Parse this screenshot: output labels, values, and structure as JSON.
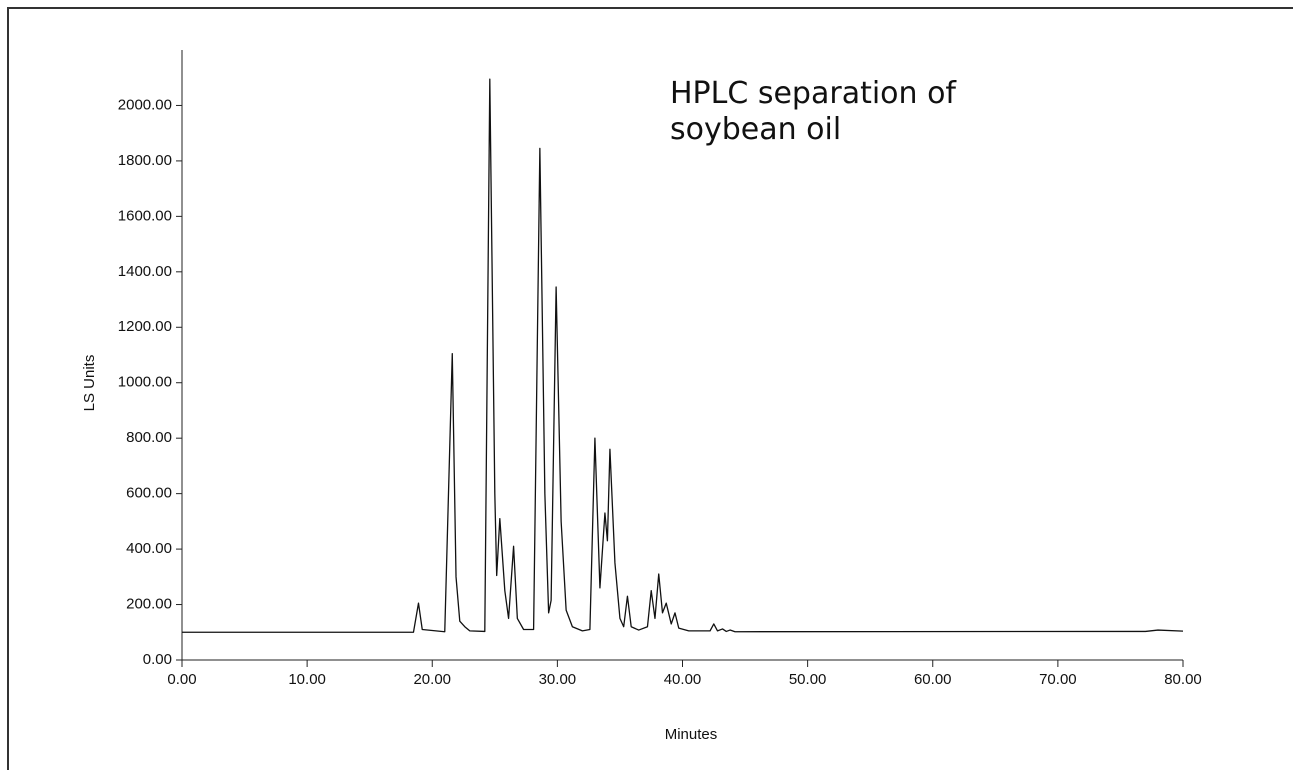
{
  "chart_data": {
    "type": "line",
    "title": "HPLC separation of soybean oil",
    "x_label": "Minutes",
    "y_label": "LS Units",
    "xlim": [
      0,
      80
    ],
    "ylim": [
      0,
      2200
    ],
    "xticks": [
      {
        "value": 0,
        "label": "0.00"
      },
      {
        "value": 10,
        "label": "10.00"
      },
      {
        "value": 20,
        "label": "20.00"
      },
      {
        "value": 30,
        "label": "30.00"
      },
      {
        "value": 40,
        "label": "40.00"
      },
      {
        "value": 50,
        "label": "50.00"
      },
      {
        "value": 60,
        "label": "60.00"
      },
      {
        "value": 70,
        "label": "70.00"
      },
      {
        "value": 80,
        "label": "80.00"
      }
    ],
    "yticks": [
      {
        "value": 0,
        "label": "0.00"
      },
      {
        "value": 200,
        "label": "200.00"
      },
      {
        "value": 400,
        "label": "400.00"
      },
      {
        "value": 600,
        "label": "600.00"
      },
      {
        "value": 800,
        "label": "800.00"
      },
      {
        "value": 1000,
        "label": "1000.00"
      },
      {
        "value": 1200,
        "label": "1200.00"
      },
      {
        "value": 1400,
        "label": "1400.00"
      },
      {
        "value": 1600,
        "label": "1600.00"
      },
      {
        "value": 1800,
        "label": "1800.00"
      },
      {
        "value": 2000,
        "label": "2000.00"
      }
    ],
    "color": "#111111",
    "x": [
      0,
      16,
      18.5,
      18.9,
      19.2,
      21.0,
      21.6,
      21.9,
      22.2,
      22.6,
      23.0,
      24.2,
      24.6,
      25.0,
      25.15,
      25.4,
      25.8,
      26.1,
      26.5,
      26.8,
      27.3,
      28.1,
      28.6,
      29.0,
      29.3,
      29.5,
      29.9,
      30.3,
      30.7,
      31.2,
      32.0,
      32.6,
      33.0,
      33.4,
      33.8,
      34.0,
      34.2,
      34.6,
      35.0,
      35.3,
      35.6,
      35.9,
      36.5,
      37.2,
      37.5,
      37.8,
      38.1,
      38.4,
      38.7,
      39.1,
      39.4,
      39.7,
      40.5,
      42.2,
      42.5,
      42.8,
      43.2,
      43.5,
      43.8,
      44.2,
      77,
      78,
      80
    ],
    "values": [
      100,
      100,
      100,
      205,
      110,
      102,
      1105,
      300,
      140,
      120,
      105,
      103,
      2095,
      600,
      305,
      510,
      250,
      150,
      410,
      150,
      110,
      110,
      1845,
      600,
      170,
      215,
      1345,
      500,
      180,
      120,
      105,
      110,
      800,
      260,
      530,
      430,
      760,
      350,
      150,
      120,
      230,
      120,
      108,
      120,
      250,
      150,
      310,
      170,
      205,
      130,
      170,
      115,
      105,
      105,
      130,
      105,
      112,
      103,
      108,
      102,
      103,
      108,
      104
    ]
  }
}
